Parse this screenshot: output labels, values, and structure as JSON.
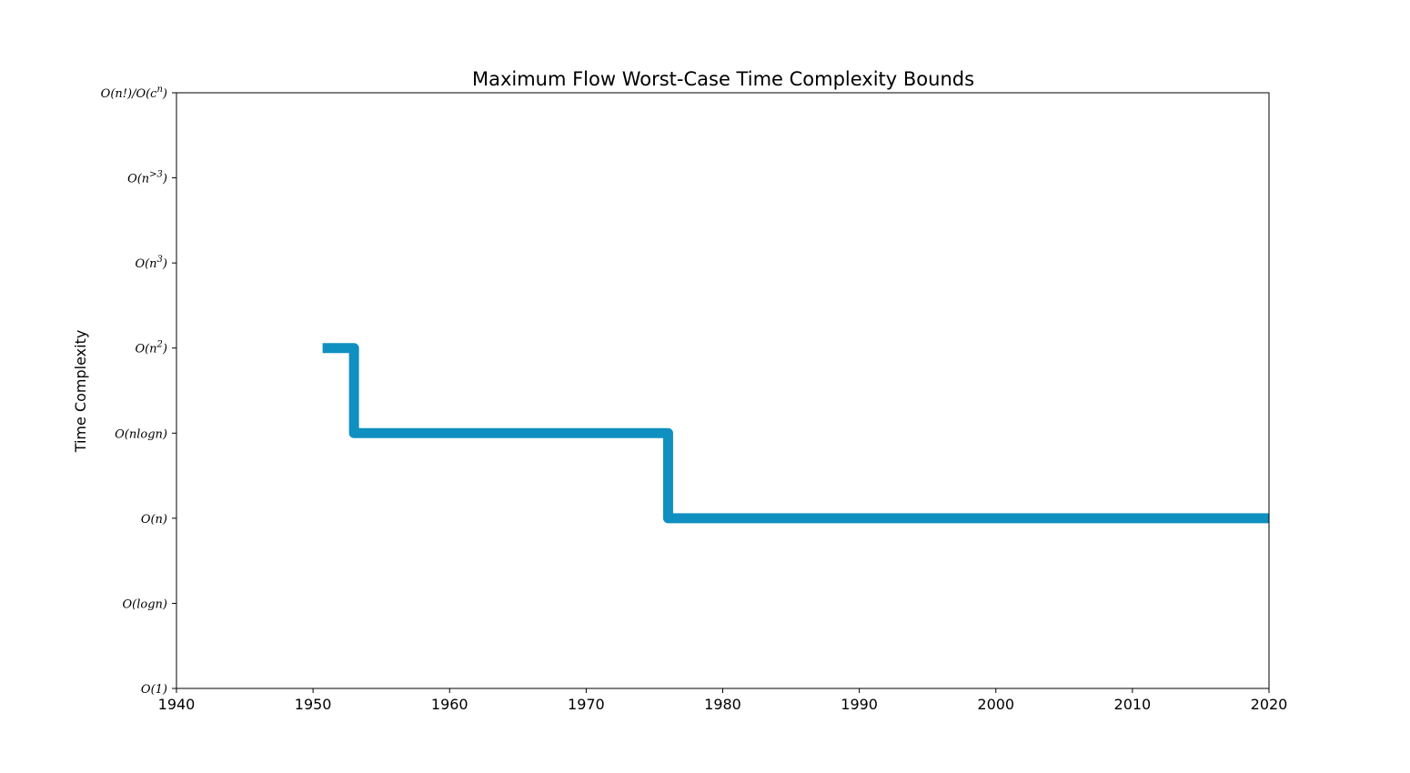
{
  "chart_data": {
    "type": "line",
    "step": "post",
    "title": "Maximum Flow Worst-Case Time Complexity Bounds",
    "xlabel": "",
    "ylabel": "Time Complexity",
    "xlim": [
      1940,
      2020
    ],
    "ylim": [
      0,
      7
    ],
    "x_ticks": [
      1940,
      1950,
      1960,
      1970,
      1980,
      1990,
      2000,
      2010,
      2020
    ],
    "y_tick_labels": [
      {
        "value": 0,
        "base": "O(1)",
        "sup": "",
        "tail": ""
      },
      {
        "value": 1,
        "base": "O(logn)",
        "sup": "",
        "tail": ""
      },
      {
        "value": 2,
        "base": "O(n)",
        "sup": "",
        "tail": ""
      },
      {
        "value": 3,
        "base": "O(nlogn)",
        "sup": "",
        "tail": ""
      },
      {
        "value": 4,
        "base": "O(n",
        "sup": "2",
        "tail": ")"
      },
      {
        "value": 5,
        "base": "O(n",
        "sup": "3",
        "tail": ")"
      },
      {
        "value": 6,
        "base": "O(n",
        "sup": ">3",
        "tail": ")"
      },
      {
        "value": 7,
        "base": "O(n!)/O(c",
        "sup": "n",
        "tail": ")"
      }
    ],
    "series": [
      {
        "color": "#1090c0",
        "points": [
          {
            "x": 1950.7,
            "y": 4
          },
          {
            "x": 1953,
            "y": 4
          },
          {
            "x": 1953,
            "y": 3
          },
          {
            "x": 1976,
            "y": 3
          },
          {
            "x": 1976,
            "y": 2
          },
          {
            "x": 2020,
            "y": 2
          }
        ]
      }
    ],
    "grid": false,
    "legend": "none"
  }
}
